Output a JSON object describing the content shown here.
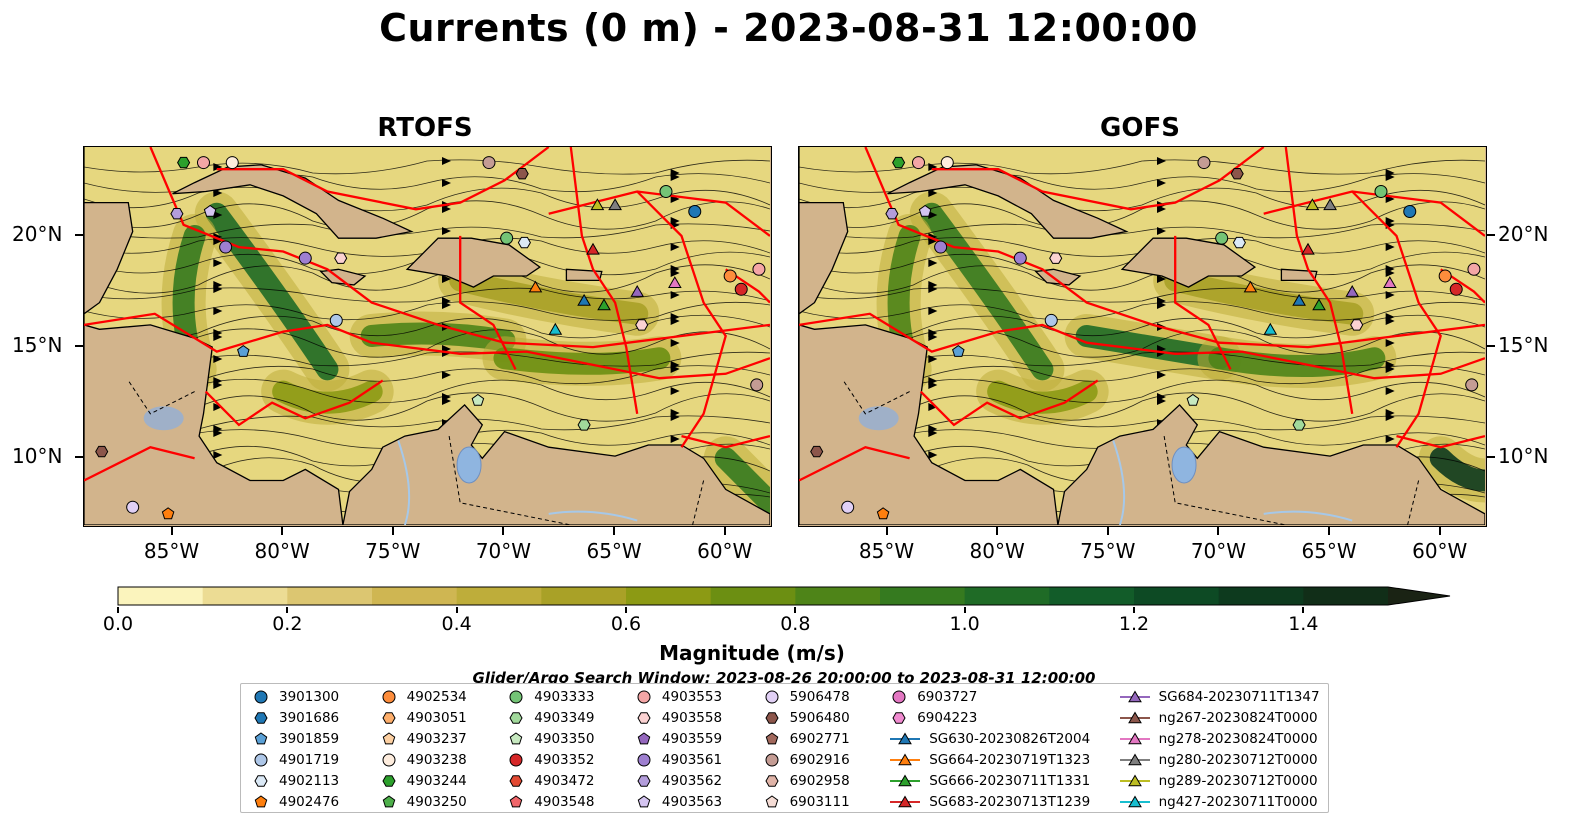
{
  "title": "Currents (0 m) - 2023-08-31 12:00:00",
  "panels": [
    {
      "title": "RTOFS"
    },
    {
      "title": "GOFS"
    }
  ],
  "map": {
    "lon_range": [
      -89,
      -58
    ],
    "lat_range": [
      7,
      24
    ],
    "lat_ticks": [
      "20°N",
      "15°N",
      "10°N"
    ],
    "lon_ticks": [
      "85°W",
      "80°W",
      "75°W",
      "70°W",
      "65°W",
      "60°W"
    ],
    "land_color": "#d2b48c",
    "eez_color": "#ff0000",
    "river_color": "#a6c8e8",
    "lake_color": "#8fb5e0"
  },
  "colorbar": {
    "label": "Magnitude (m/s)",
    "min": 0.0,
    "max": 1.5,
    "step": 0.1,
    "extend": "max",
    "ticks": [
      "0.0",
      "0.2",
      "0.4",
      "0.6",
      "0.8",
      "1.0",
      "1.2",
      "1.4"
    ],
    "colors": [
      "#fbf4bd",
      "#ecdc94",
      "#dcc671",
      "#cfb652",
      "#bead3a",
      "#a9a127",
      "#8c9a14",
      "#6c8f12",
      "#4e8418",
      "#357a1f",
      "#1f6b26",
      "#125c29",
      "#0d4a24",
      "#0d3a1e",
      "#112e18",
      "#1a2314"
    ]
  },
  "search_window": "Glider/Argo Search Window: 2023-08-26 20:00:00 to 2023-08-31 12:00:00",
  "legend": {
    "columns": [
      [
        {
          "label": "3901300",
          "marker": "circle",
          "color": "#1f77b4"
        },
        {
          "label": "3901686",
          "marker": "hexagon",
          "color": "#1f77b4"
        },
        {
          "label": "3901859",
          "marker": "pentagon",
          "color": "#5aa0d6"
        },
        {
          "label": "4901719",
          "marker": "circle",
          "color": "#aec7e8"
        },
        {
          "label": "4902113",
          "marker": "hexagon",
          "color": "#dbe9f6"
        },
        {
          "label": "4902476",
          "marker": "pentagon",
          "color": "#ff7f0e"
        }
      ],
      [
        {
          "label": "4902534",
          "marker": "circle",
          "color": "#fd8d3c"
        },
        {
          "label": "4903051",
          "marker": "hexagon",
          "color": "#fdae6b"
        },
        {
          "label": "4903237",
          "marker": "pentagon",
          "color": "#fdd0a2"
        },
        {
          "label": "4903238",
          "marker": "circle",
          "color": "#feedde"
        },
        {
          "label": "4903244",
          "marker": "hexagon",
          "color": "#2ca02c"
        },
        {
          "label": "4903250",
          "marker": "pentagon",
          "color": "#4daf4a"
        }
      ],
      [
        {
          "label": "4903333",
          "marker": "circle",
          "color": "#74c476"
        },
        {
          "label": "4903349",
          "marker": "hexagon",
          "color": "#a1d99b"
        },
        {
          "label": "4903350",
          "marker": "pentagon",
          "color": "#c7e9c0"
        },
        {
          "label": "4903352",
          "marker": "circle",
          "color": "#d62728"
        },
        {
          "label": "4903472",
          "marker": "hexagon",
          "color": "#e34a33"
        },
        {
          "label": "4903548",
          "marker": "pentagon",
          "color": "#f0666a"
        }
      ],
      [
        {
          "label": "4903553",
          "marker": "circle",
          "color": "#f4a6a6"
        },
        {
          "label": "4903558",
          "marker": "hexagon",
          "color": "#fbd2d2"
        },
        {
          "label": "4903559",
          "marker": "pentagon",
          "color": "#9467bd"
        },
        {
          "label": "4903561",
          "marker": "circle",
          "color": "#9e7fd0"
        },
        {
          "label": "4903562",
          "marker": "hexagon",
          "color": "#b39ddb"
        },
        {
          "label": "4903563",
          "marker": "pentagon",
          "color": "#d4c4f0"
        }
      ],
      [
        {
          "label": "5906478",
          "marker": "circle",
          "color": "#e1d0f5"
        },
        {
          "label": "5906480",
          "marker": "hexagon",
          "color": "#8c564b"
        },
        {
          "label": "6902771",
          "marker": "pentagon",
          "color": "#a1685c"
        },
        {
          "label": "6902916",
          "marker": "circle",
          "color": "#c49c94"
        },
        {
          "label": "6902958",
          "marker": "hexagon",
          "color": "#e0b4a8"
        },
        {
          "label": "6903111",
          "marker": "pentagon",
          "color": "#f5dcd5"
        }
      ],
      [
        {
          "label": "6903727",
          "marker": "circle",
          "color": "#e377c2"
        },
        {
          "label": "6904223",
          "marker": "hexagon",
          "color": "#f08bd0"
        },
        {
          "label": "SG630-20230826T2004",
          "marker": "triangle",
          "color": "#1f77b4"
        },
        {
          "label": "SG664-20230719T1323",
          "marker": "triangle",
          "color": "#ff7f0e"
        },
        {
          "label": "SG666-20230711T1331",
          "marker": "triangle",
          "color": "#2ca02c"
        },
        {
          "label": "SG683-20230713T1239",
          "marker": "triangle",
          "color": "#d62728"
        }
      ],
      [
        {
          "label": "SG684-20230711T1347",
          "marker": "triangle",
          "color": "#9467bd"
        },
        {
          "label": "ng267-20230824T0000",
          "marker": "triangle",
          "color": "#8c564b"
        },
        {
          "label": "ng278-20230824T0000",
          "marker": "triangle",
          "color": "#e377c2"
        },
        {
          "label": "ng280-20230712T0000",
          "marker": "triangle",
          "color": "#7f7f7f"
        },
        {
          "label": "ng289-20230712T0000",
          "marker": "triangle",
          "color": "#bcbd22"
        },
        {
          "label": "ng427-20230711T0000",
          "marker": "triangle",
          "color": "#17becf"
        }
      ]
    ]
  },
  "map_markers": [
    {
      "id": "4903244",
      "lon": -84.5,
      "lat": 23.3
    },
    {
      "id": "4903553",
      "lon": -83.6,
      "lat": 23.3
    },
    {
      "id": "4903238",
      "lon": -82.3,
      "lat": 23.3
    },
    {
      "id": "6902916",
      "lon": -70.7,
      "lat": 23.3
    },
    {
      "id": "5906480",
      "lon": -69.2,
      "lat": 22.8
    },
    {
      "id": "4903333",
      "lon": -62.7,
      "lat": 22.0
    },
    {
      "id": "3901300",
      "lon": -61.4,
      "lat": 21.1
    },
    {
      "id": "4903562",
      "lon": -84.8,
      "lat": 21.0
    },
    {
      "id": "4903563",
      "lon": -83.3,
      "lat": 21.1
    },
    {
      "id": "4903561",
      "lon": -82.6,
      "lat": 19.5
    },
    {
      "id": "4903561",
      "lon": -79.0,
      "lat": 19.0
    },
    {
      "id": "4903558",
      "lon": -77.4,
      "lat": 19.0
    },
    {
      "id": "4903333",
      "lon": -69.9,
      "lat": 19.9
    },
    {
      "id": "4902113",
      "lon": -69.1,
      "lat": 19.7
    },
    {
      "id": "ng289-20230712T0000",
      "lon": -65.8,
      "lat": 21.4
    },
    {
      "id": "ng280-20230712T0000",
      "lon": -65.0,
      "lat": 21.4
    },
    {
      "id": "SG683-20230713T1239",
      "lon": -66.0,
      "lat": 19.4
    },
    {
      "id": "SG664-20230719T1323",
      "lon": -68.6,
      "lat": 17.7
    },
    {
      "id": "SG630-20230826T2004",
      "lon": -66.4,
      "lat": 17.1
    },
    {
      "id": "SG666-20230711T1331",
      "lon": -65.5,
      "lat": 16.9
    },
    {
      "id": "SG684-20230711T1347",
      "lon": -64.0,
      "lat": 17.5
    },
    {
      "id": "ng278-20230824T0000",
      "lon": -62.3,
      "lat": 17.9
    },
    {
      "id": "4902534",
      "lon": -59.8,
      "lat": 18.2
    },
    {
      "id": "4903352",
      "lon": -59.3,
      "lat": 17.6
    },
    {
      "id": "4903553",
      "lon": -58.5,
      "lat": 18.5
    },
    {
      "id": "ng427-20230711T0000",
      "lon": -67.7,
      "lat": 15.8
    },
    {
      "id": "4901719",
      "lon": -77.6,
      "lat": 16.2
    },
    {
      "id": "3901859",
      "lon": -81.8,
      "lat": 14.8
    },
    {
      "id": "4903558",
      "lon": -63.8,
      "lat": 16.0
    },
    {
      "id": "4903350",
      "lon": -71.2,
      "lat": 12.6
    },
    {
      "id": "4903349",
      "lon": -66.4,
      "lat": 11.5
    },
    {
      "id": "6902916",
      "lon": -58.6,
      "lat": 13.3
    },
    {
      "id": "5906480",
      "lon": -88.2,
      "lat": 10.3
    },
    {
      "id": "5906478",
      "lon": -86.8,
      "lat": 7.8
    },
    {
      "id": "4902476",
      "lon": -85.2,
      "lat": 7.5
    }
  ]
}
